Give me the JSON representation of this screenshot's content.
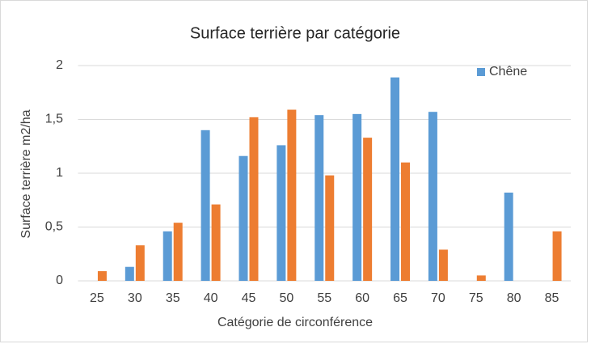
{
  "chart_data": {
    "type": "bar",
    "title": "Surface terrière par catégorie",
    "x_label": "Catégorie de circonférence",
    "y_label": "Surface terrière m2/ha",
    "categories": [
      "25",
      "30",
      "35",
      "40",
      "45",
      "50",
      "55",
      "60",
      "65",
      "70",
      "75",
      "80",
      "85"
    ],
    "series": [
      {
        "name": "Chêne",
        "color": "#5b9bd5",
        "values": [
          0,
          0.13,
          0.46,
          1.4,
          1.16,
          1.26,
          1.54,
          1.55,
          1.89,
          1.57,
          0,
          0.82,
          0
        ]
      },
      {
        "color": "#ed7d31",
        "values": [
          0.09,
          0.33,
          0.54,
          0.71,
          1.52,
          1.59,
          0.98,
          1.33,
          1.1,
          0.29,
          0.05,
          0,
          0.46
        ]
      }
    ],
    "ylim": [
      0,
      2
    ],
    "yticks": [
      0,
      {
        "value": 0.5,
        "label": "0,5"
      },
      1,
      {
        "value": 1.5,
        "label": "1,5"
      },
      2
    ],
    "grid": true,
    "legend": "top-right"
  }
}
